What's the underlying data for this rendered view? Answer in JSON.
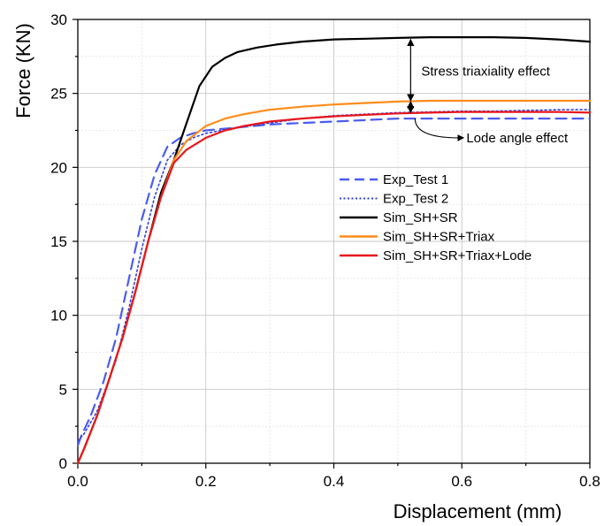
{
  "chart_data": {
    "type": "line",
    "xlabel": "Displacement (mm)",
    "ylabel": "Force (KN)",
    "xlim": [
      0,
      0.8
    ],
    "ylim": [
      0,
      30
    ],
    "xticks": [
      0.0,
      0.2,
      0.4,
      0.6,
      0.8
    ],
    "xtick_labels": [
      "0.0",
      "0.2",
      "0.4",
      "0.6",
      "0.8"
    ],
    "yticks": [
      0,
      5,
      10,
      15,
      20,
      25,
      30
    ],
    "ytick_labels": [
      "0",
      "5",
      "10",
      "15",
      "20",
      "25",
      "30"
    ],
    "grid": true,
    "legend_position": "right-center",
    "series": [
      {
        "name": "Exp_Test 1",
        "color": "#4a5cf0",
        "style": "dashed",
        "x": [
          0,
          0.005,
          0.02,
          0.04,
          0.06,
          0.08,
          0.1,
          0.12,
          0.14,
          0.16,
          0.18,
          0.2,
          0.25,
          0.3,
          0.35,
          0.4,
          0.45,
          0.5,
          0.55,
          0.6,
          0.65,
          0.7,
          0.75,
          0.8
        ],
        "y": [
          1.2,
          1.8,
          3.2,
          5.5,
          8.5,
          12.5,
          16.5,
          19.5,
          21.4,
          22.0,
          22.3,
          22.5,
          22.7,
          22.9,
          23.0,
          23.1,
          23.2,
          23.3,
          23.3,
          23.3,
          23.3,
          23.3,
          23.3,
          23.3
        ]
      },
      {
        "name": "Exp_Test 2",
        "color": "#3344dd",
        "style": "dotted",
        "x": [
          0,
          0.01,
          0.03,
          0.05,
          0.06,
          0.08,
          0.1,
          0.12,
          0.14,
          0.16,
          0.18,
          0.2,
          0.25,
          0.3,
          0.35,
          0.4,
          0.45,
          0.5,
          0.55,
          0.6,
          0.65,
          0.7,
          0.75,
          0.8
        ],
        "y": [
          1.5,
          2.0,
          3.5,
          5.8,
          7.0,
          10.5,
          14.5,
          18.0,
          20.5,
          21.5,
          22.0,
          22.3,
          22.7,
          23.0,
          23.3,
          23.5,
          23.6,
          23.7,
          23.75,
          23.8,
          23.8,
          23.85,
          23.9,
          23.9
        ]
      },
      {
        "name": "Sim_SH+SR",
        "color": "#000000",
        "style": "solid",
        "x": [
          0,
          0.01,
          0.03,
          0.05,
          0.07,
          0.09,
          0.11,
          0.13,
          0.15,
          0.17,
          0.19,
          0.21,
          0.23,
          0.25,
          0.28,
          0.31,
          0.35,
          0.4,
          0.45,
          0.5,
          0.55,
          0.6,
          0.65,
          0.7,
          0.75,
          0.8
        ],
        "y": [
          0,
          1.0,
          3.2,
          5.8,
          8.5,
          11.6,
          15.0,
          18.3,
          20.5,
          23.0,
          25.5,
          26.8,
          27.4,
          27.8,
          28.1,
          28.3,
          28.5,
          28.65,
          28.7,
          28.75,
          28.8,
          28.8,
          28.8,
          28.75,
          28.65,
          28.5
        ]
      },
      {
        "name": "Sim_SH+SR+Triax",
        "color": "#ff8c1a",
        "style": "solid",
        "x": [
          0,
          0.01,
          0.03,
          0.05,
          0.07,
          0.09,
          0.11,
          0.13,
          0.15,
          0.17,
          0.2,
          0.23,
          0.26,
          0.3,
          0.35,
          0.4,
          0.45,
          0.5,
          0.55,
          0.6,
          0.65,
          0.7,
          0.75,
          0.8
        ],
        "y": [
          0,
          1.0,
          3.2,
          5.8,
          8.5,
          11.6,
          15.0,
          18.0,
          20.5,
          21.8,
          22.8,
          23.3,
          23.6,
          23.9,
          24.1,
          24.25,
          24.35,
          24.45,
          24.5,
          24.5,
          24.5,
          24.5,
          24.5,
          24.5
        ]
      },
      {
        "name": "Sim_SH+SR+Triax+Lode",
        "color": "#e8161e",
        "style": "solid",
        "x": [
          0,
          0.01,
          0.03,
          0.05,
          0.07,
          0.09,
          0.11,
          0.13,
          0.15,
          0.17,
          0.2,
          0.23,
          0.26,
          0.3,
          0.35,
          0.4,
          0.45,
          0.5,
          0.55,
          0.6,
          0.65,
          0.7,
          0.75,
          0.8
        ],
        "y": [
          0,
          1.0,
          3.2,
          5.8,
          8.5,
          11.6,
          15.0,
          18.0,
          20.3,
          21.2,
          22.0,
          22.5,
          22.8,
          23.1,
          23.3,
          23.45,
          23.55,
          23.65,
          23.7,
          23.75,
          23.75,
          23.75,
          23.75,
          23.7
        ]
      }
    ],
    "annotations": [
      {
        "text": "Stress triaxiality effect"
      },
      {
        "text": "Lode angle effect"
      }
    ]
  }
}
